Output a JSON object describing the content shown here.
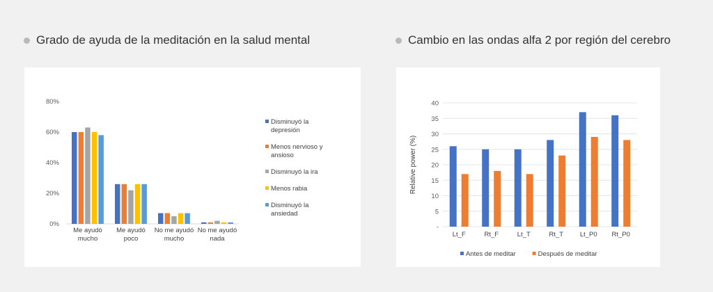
{
  "left": {
    "title": "Grado de ayuda de la meditación en la salud mental"
  },
  "right": {
    "title": "Cambio en las ondas alfa 2 por región del cerebro"
  },
  "chart_data": [
    {
      "type": "bar",
      "categories": [
        [
          "Me ayudó",
          "mucho"
        ],
        [
          "Me ayudó",
          "poco"
        ],
        [
          "No me ayudó",
          "mucho"
        ],
        [
          "No me ayudó",
          "nada"
        ]
      ],
      "ylim": [
        0,
        80
      ],
      "yticks": [
        "0%",
        "20%",
        "40%",
        "60%",
        "80%"
      ],
      "grid": false,
      "legend": "right",
      "series": [
        {
          "name": "Disminuyó la depresión",
          "values": [
            60,
            26,
            7,
            1
          ],
          "color": "#4472c4"
        },
        {
          "name": "Menos nervioso y ansioso",
          "values": [
            60,
            26,
            7,
            1
          ],
          "color": "#ed7d31"
        },
        {
          "name": "Disminuyó la ira",
          "values": [
            63,
            22,
            5,
            2
          ],
          "color": "#a5a5a5"
        },
        {
          "name": "Menos rabia",
          "values": [
            60,
            26,
            7,
            1
          ],
          "color": "#ffc000"
        },
        {
          "name": "Disminuyó la ansiedad",
          "values": [
            58,
            26,
            7,
            1
          ],
          "color": "#5b9bd5"
        }
      ]
    },
    {
      "type": "bar",
      "categories": [
        "Lt_F",
        "Rt_F",
        "Lt_T",
        "Rt_T",
        "Lt_P0",
        "Rt_P0"
      ],
      "ylabel": "Relative power (%)",
      "ylim": [
        0,
        40
      ],
      "yticks": [
        "-",
        "5",
        "10",
        "15",
        "20",
        "25",
        "30",
        "35",
        "40"
      ],
      "grid": true,
      "legend": "bottom",
      "series": [
        {
          "name": "Antes de meditar",
          "values": [
            26,
            25,
            25,
            28,
            37,
            36
          ],
          "color": "#4472c4"
        },
        {
          "name": "Después de meditar",
          "values": [
            17,
            18,
            17,
            23,
            29,
            28
          ],
          "color": "#ed7d31"
        }
      ]
    }
  ]
}
